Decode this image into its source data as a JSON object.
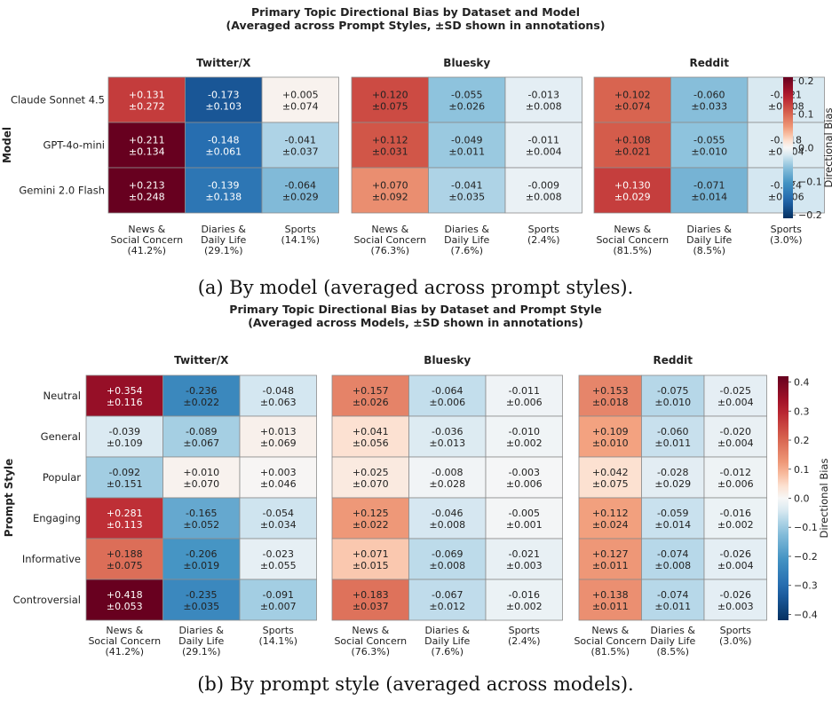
{
  "panels": [
    {
      "caption": "(a) By model (averaged across prompt styles).",
      "chart_data": {
        "type": "heatmap",
        "title": "Primary Topic Directional Bias by Dataset and Model",
        "subtitle": "(Averaged across Prompt Styles, ±SD shown in annotations)",
        "ylabel": "Model",
        "colorbar_label": "Directional Bias",
        "colorbar_range": [
          -0.21,
          0.21
        ],
        "colorbar_ticks": [
          "0.2",
          "0.1",
          "0.0",
          "−0.1",
          "−0.2"
        ],
        "colorscale": "RdBu_r",
        "rows": [
          "Claude Sonnet 4.5",
          "GPT-4o-mini",
          "Gemini 2.0 Flash"
        ],
        "datasets": [
          {
            "name": "Twitter/X",
            "columns": [
              {
                "line1": "News &",
                "line2": "Social Concern",
                "line3": "(41.2%)"
              },
              {
                "line1": "Diaries &",
                "line2": "Daily Life",
                "line3": "(29.1%)"
              },
              {
                "line1": "Sports",
                "line2": "(14.1%)",
                "line3": ""
              }
            ],
            "values": [
              [
                0.131,
                -0.173,
                0.005
              ],
              [
                0.211,
                -0.148,
                -0.041
              ],
              [
                0.213,
                -0.139,
                -0.064
              ]
            ],
            "sd": [
              [
                0.272,
                0.103,
                0.074
              ],
              [
                0.134,
                0.061,
                0.037
              ],
              [
                0.248,
                0.138,
                0.029
              ]
            ]
          },
          {
            "name": "Bluesky",
            "columns": [
              {
                "line1": "News &",
                "line2": "Social Concern",
                "line3": "(76.3%)"
              },
              {
                "line1": "Diaries &",
                "line2": "Daily Life",
                "line3": "(7.6%)"
              },
              {
                "line1": "Sports",
                "line2": "(2.4%)",
                "line3": ""
              }
            ],
            "values": [
              [
                0.12,
                -0.055,
                -0.013
              ],
              [
                0.112,
                -0.049,
                -0.011
              ],
              [
                0.07,
                -0.041,
                -0.009
              ]
            ],
            "sd": [
              [
                0.075,
                0.026,
                0.008
              ],
              [
                0.031,
                0.011,
                0.004
              ],
              [
                0.092,
                0.035,
                0.008
              ]
            ]
          },
          {
            "name": "Reddit",
            "columns": [
              {
                "line1": "News &",
                "line2": "Social Concern",
                "line3": "(81.5%)"
              },
              {
                "line1": "Diaries &",
                "line2": "Daily Life",
                "line3": "(8.5%)"
              },
              {
                "line1": "Sports",
                "line2": "(3.0%)",
                "line3": ""
              }
            ],
            "values": [
              [
                0.102,
                -0.06,
                -0.021
              ],
              [
                0.108,
                -0.055,
                -0.018
              ],
              [
                0.13,
                -0.071,
                -0.024
              ]
            ],
            "sd": [
              [
                0.074,
                0.033,
                0.008
              ],
              [
                0.021,
                0.01,
                0.004
              ],
              [
                0.029,
                0.014,
                0.006
              ]
            ]
          }
        ]
      }
    },
    {
      "caption": "(b) By prompt style (averaged across models).",
      "chart_data": {
        "type": "heatmap",
        "title": "Primary Topic Directional Bias by Dataset and Prompt Style",
        "subtitle": "(Averaged across Models, ±SD shown in annotations)",
        "ylabel": "Prompt Style",
        "colorbar_label": "Directional Bias",
        "colorbar_range": [
          -0.42,
          0.42
        ],
        "colorbar_ticks": [
          "0.4",
          "0.3",
          "0.2",
          "0.1",
          "0.0",
          "−0.1",
          "−0.2",
          "−0.3",
          "−0.4"
        ],
        "colorscale": "RdBu_r",
        "rows": [
          "Neutral",
          "General",
          "Popular",
          "Engaging",
          "Informative",
          "Controversial"
        ],
        "datasets": [
          {
            "name": "Twitter/X",
            "columns": [
              {
                "line1": "News &",
                "line2": "Social Concern",
                "line3": "(41.2%)"
              },
              {
                "line1": "Diaries &",
                "line2": "Daily Life",
                "line3": "(29.1%)"
              },
              {
                "line1": "Sports",
                "line2": "(14.1%)",
                "line3": ""
              }
            ],
            "values": [
              [
                0.354,
                -0.236,
                -0.048
              ],
              [
                -0.039,
                -0.089,
                0.013
              ],
              [
                -0.092,
                0.01,
                0.003
              ],
              [
                0.281,
                -0.165,
                -0.054
              ],
              [
                0.188,
                -0.206,
                -0.023
              ],
              [
                0.418,
                -0.235,
                -0.091
              ]
            ],
            "sd": [
              [
                0.116,
                0.022,
                0.063
              ],
              [
                0.109,
                0.067,
                0.069
              ],
              [
                0.151,
                0.07,
                0.046
              ],
              [
                0.113,
                0.052,
                0.034
              ],
              [
                0.075,
                0.019,
                0.055
              ],
              [
                0.053,
                0.035,
                0.007
              ]
            ]
          },
          {
            "name": "Bluesky",
            "columns": [
              {
                "line1": "News &",
                "line2": "Social Concern",
                "line3": "(76.3%)"
              },
              {
                "line1": "Diaries &",
                "line2": "Daily Life",
                "line3": "(7.6%)"
              },
              {
                "line1": "Sports",
                "line2": "(2.4%)",
                "line3": ""
              }
            ],
            "values": [
              [
                0.157,
                -0.064,
                -0.011
              ],
              [
                0.041,
                -0.036,
                -0.01
              ],
              [
                0.025,
                -0.008,
                -0.003
              ],
              [
                0.125,
                -0.046,
                -0.005
              ],
              [
                0.071,
                -0.069,
                -0.021
              ],
              [
                0.183,
                -0.067,
                -0.016
              ]
            ],
            "sd": [
              [
                0.026,
                0.006,
                0.006
              ],
              [
                0.056,
                0.013,
                0.002
              ],
              [
                0.07,
                0.028,
                0.006
              ],
              [
                0.022,
                0.008,
                0.001
              ],
              [
                0.015,
                0.008,
                0.003
              ],
              [
                0.037,
                0.012,
                0.002
              ]
            ]
          },
          {
            "name": "Reddit",
            "columns": [
              {
                "line1": "News &",
                "line2": "Social Concern",
                "line3": "(81.5%)"
              },
              {
                "line1": "Diaries &",
                "line2": "Daily Life",
                "line3": "(8.5%)"
              },
              {
                "line1": "Sports",
                "line2": "(3.0%)",
                "line3": ""
              }
            ],
            "values": [
              [
                0.153,
                -0.075,
                -0.025
              ],
              [
                0.109,
                -0.06,
                -0.02
              ],
              [
                0.042,
                -0.028,
                -0.012
              ],
              [
                0.112,
                -0.059,
                -0.016
              ],
              [
                0.127,
                -0.074,
                -0.026
              ],
              [
                0.138,
                -0.074,
                -0.026
              ]
            ],
            "sd": [
              [
                0.018,
                0.01,
                0.004
              ],
              [
                0.01,
                0.011,
                0.004
              ],
              [
                0.075,
                0.029,
                0.006
              ],
              [
                0.024,
                0.014,
                0.002
              ],
              [
                0.011,
                0.008,
                0.004
              ],
              [
                0.011,
                0.011,
                0.003
              ]
            ]
          }
        ]
      }
    }
  ]
}
